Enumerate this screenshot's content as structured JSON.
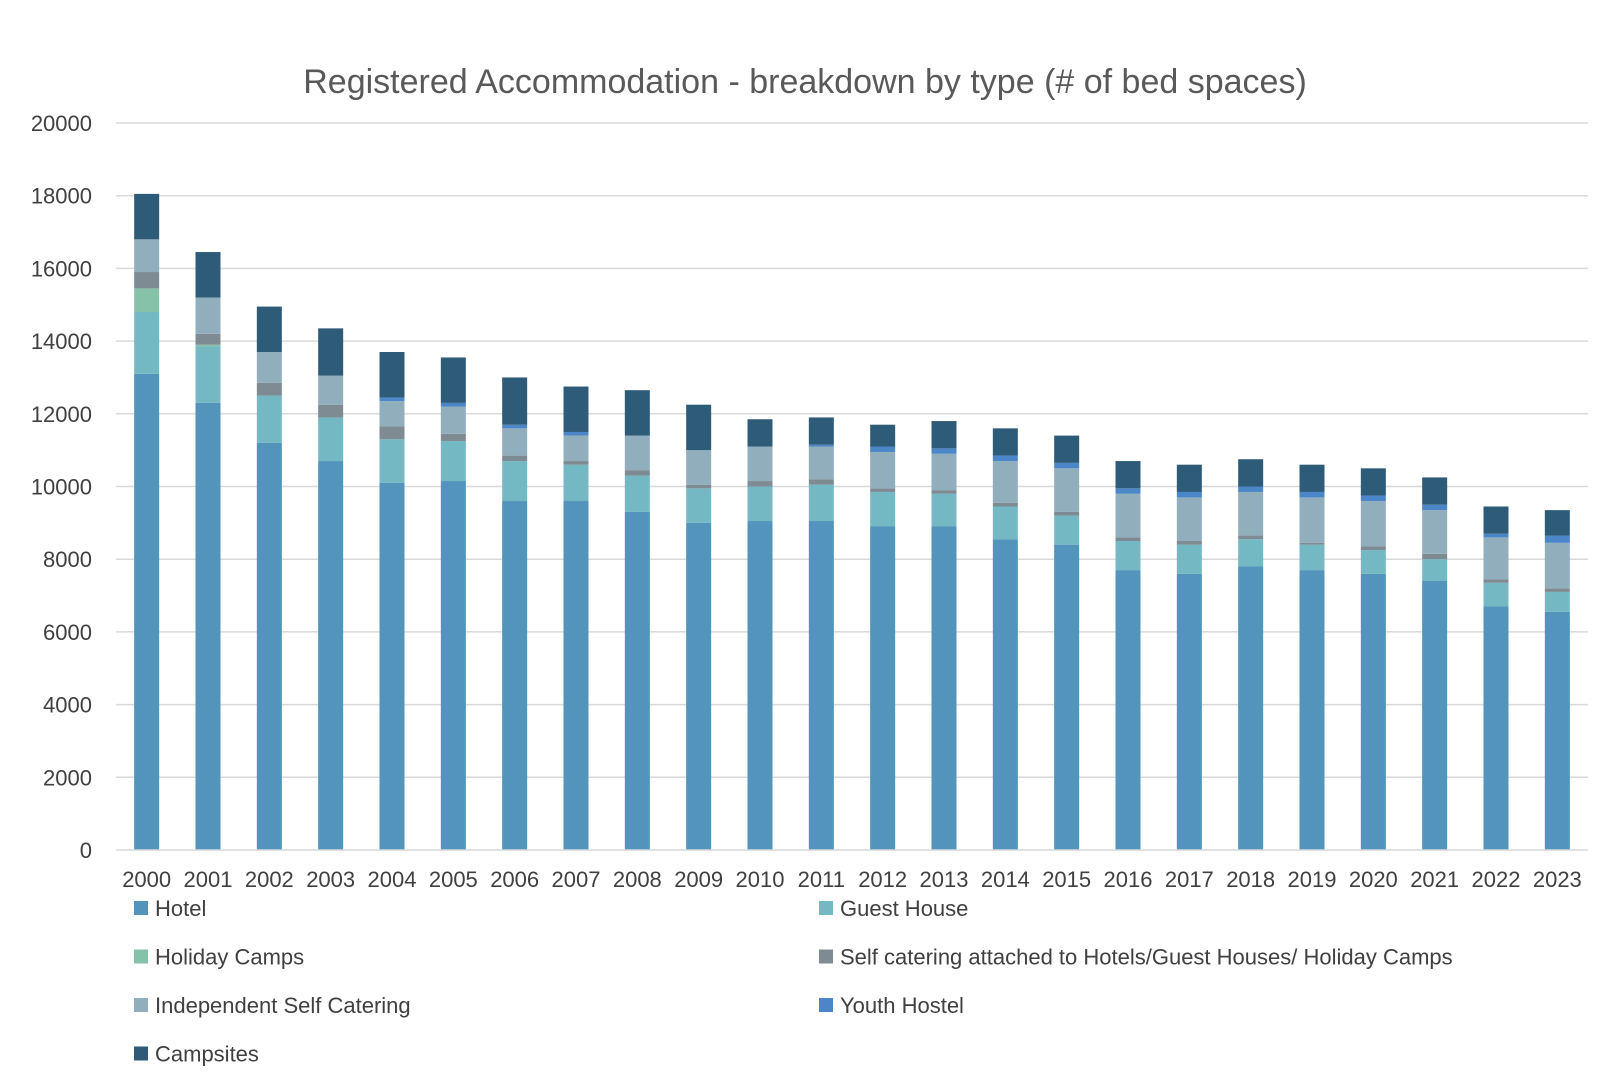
{
  "chart_data": {
    "type": "bar",
    "stacked": true,
    "title": "Registered Accommodation - breakdown by type (# of bed spaces)",
    "xlabel": "",
    "ylabel": "",
    "ylim": [
      0,
      20000
    ],
    "yticks": [
      0,
      2000,
      4000,
      6000,
      8000,
      10000,
      12000,
      14000,
      16000,
      18000,
      20000
    ],
    "grid": true,
    "legend_position": "bottom",
    "categories": [
      "2000",
      "2001",
      "2002",
      "2003",
      "2004",
      "2005",
      "2006",
      "2007",
      "2008",
      "2009",
      "2010",
      "2011",
      "2012",
      "2013",
      "2014",
      "2015",
      "2016",
      "2017",
      "2018",
      "2019",
      "2020",
      "2021",
      "2022",
      "2023"
    ],
    "series": [
      {
        "name": "Hotel",
        "color": "#5294bc",
        "values": [
          13100,
          12300,
          11200,
          10700,
          10100,
          10150,
          9600,
          9600,
          9300,
          9000,
          9050,
          9050,
          8900,
          8900,
          8550,
          8400,
          7700,
          7600,
          7800,
          7700,
          7600,
          7400,
          6700,
          6550
        ]
      },
      {
        "name": "Guest House",
        "color": "#74b8c4",
        "values": [
          1700,
          1550,
          1300,
          1200,
          1200,
          1100,
          1100,
          1000,
          1000,
          950,
          950,
          1000,
          950,
          900,
          900,
          800,
          800,
          800,
          750,
          700,
          650,
          600,
          650,
          550
        ]
      },
      {
        "name": "Holiday Camps",
        "color": "#86c2aa",
        "values": [
          650,
          50,
          0,
          0,
          0,
          0,
          0,
          0,
          0,
          0,
          0,
          0,
          0,
          0,
          0,
          0,
          0,
          0,
          0,
          0,
          0,
          0,
          0,
          0
        ]
      },
      {
        "name": "Self catering attached to Hotels/Guest Houses/ Holiday Camps",
        "color": "#7f8b93",
        "values": [
          450,
          300,
          350,
          350,
          350,
          200,
          150,
          100,
          150,
          100,
          150,
          150,
          100,
          100,
          100,
          100,
          100,
          100,
          100,
          50,
          100,
          150,
          100,
          100
        ]
      },
      {
        "name": "Independent Self Catering",
        "color": "#91aebd",
        "values": [
          900,
          1000,
          850,
          800,
          700,
          750,
          750,
          700,
          950,
          950,
          950,
          900,
          1000,
          1000,
          1150,
          1200,
          1200,
          1200,
          1200,
          1250,
          1250,
          1200,
          1150,
          1250
        ]
      },
      {
        "name": "Youth Hostel",
        "color": "#4a86c8",
        "values": [
          0,
          0,
          0,
          0,
          100,
          100,
          100,
          100,
          0,
          0,
          0,
          50,
          150,
          150,
          150,
          150,
          150,
          150,
          150,
          150,
          150,
          150,
          100,
          200
        ]
      },
      {
        "name": "Campsites",
        "color": "#2e5b77",
        "values": [
          1250,
          1250,
          1250,
          1300,
          1250,
          1250,
          1300,
          1250,
          1250,
          1250,
          750,
          750,
          600,
          750,
          750,
          750,
          750,
          750,
          750,
          750,
          750,
          750,
          750,
          700
        ]
      }
    ]
  }
}
